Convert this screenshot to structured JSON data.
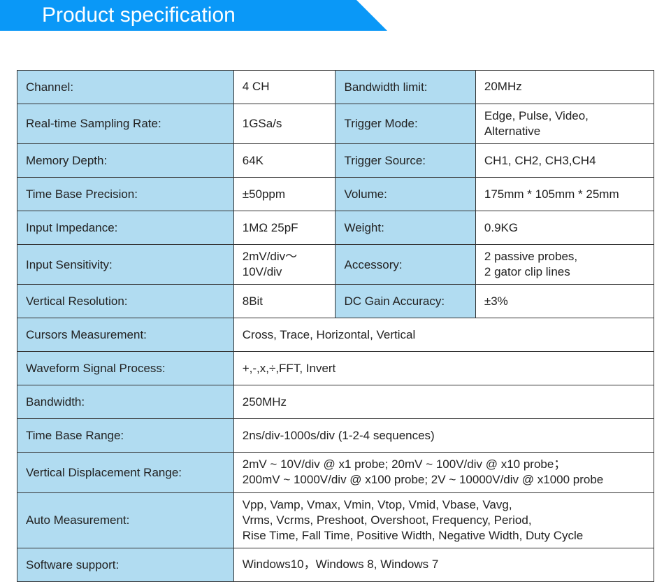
{
  "header": {
    "title": "Product specification",
    "banner_color": "#0a98f7",
    "title_color": "#ffffff"
  },
  "colors": {
    "label_bg": "#b1dcf1",
    "value_bg": "#ffffff",
    "border": "#333333",
    "text": "#222222"
  },
  "specs_two_col": [
    {
      "l1": "Channel:",
      "v1": "4 CH",
      "l2": "Bandwidth limit:",
      "v2": "20MHz"
    },
    {
      "l1": "Real-time Sampling Rate:",
      "v1": "1GSa/s",
      "l2": "Trigger Mode:",
      "v2": "Edge, Pulse, Video, Alternative"
    },
    {
      "l1": "Memory Depth:",
      "v1": "64K",
      "l2": "Trigger Source:",
      "v2": "CH1, CH2, CH3,CH4"
    },
    {
      "l1": "Time Base Precision:",
      "v1": "±50ppm",
      "l2": "Volume:",
      "v2": "175mm * 105mm * 25mm"
    },
    {
      "l1": "Input Impedance:",
      "v1": "1MΩ 25pF",
      "l2": "Weight:",
      "v2": "0.9KG"
    },
    {
      "l1": "Input Sensitivity:",
      "v1": "2mV/div～10V/div",
      "l2": "Accessory:",
      "v2": "2 passive probes,\n2 gator clip lines"
    },
    {
      "l1": "Vertical Resolution:",
      "v1": "8Bit",
      "l2": "DC Gain Accuracy:",
      "v2": "±3%"
    }
  ],
  "specs_full": [
    {
      "label": "Cursors Measurement:",
      "value": "Cross, Trace, Horizontal, Vertical"
    },
    {
      "label": "Waveform Signal Process:",
      "value": "+,-,x,÷,FFT, Invert"
    },
    {
      "label": "Bandwidth:",
      "value": "250MHz"
    },
    {
      "label": "Time Base Range:",
      "value": "2ns/div-1000s/div (1-2-4 sequences)"
    },
    {
      "label": "Vertical Displacement Range:",
      "value": "2mV ~ 10V/div @ x1 probe; 20mV ~ 100V/div @ x10 probe；\n200mV ~ 1000V/div @ x100 probe; 2V ~ 10000V/div @ x1000 probe"
    },
    {
      "label": "Auto Measurement:",
      "value": "Vpp, Vamp, Vmax, Vmin, Vtop, Vmid, Vbase, Vavg,\nVrms, Vcrms, Preshoot, Overshoot, Frequency, Period,\nRise Time, Fall Time, Positive Width, Negative Width, Duty Cycle"
    },
    {
      "label": "Software support:",
      "value": "Windows10，Windows 8, Windows 7"
    }
  ],
  "layout": {
    "col_label_left_width_pct": 34,
    "col_value_left_width_pct": 16,
    "col_label_right_width_pct": 22,
    "col_value_right_width_pct": 28
  }
}
